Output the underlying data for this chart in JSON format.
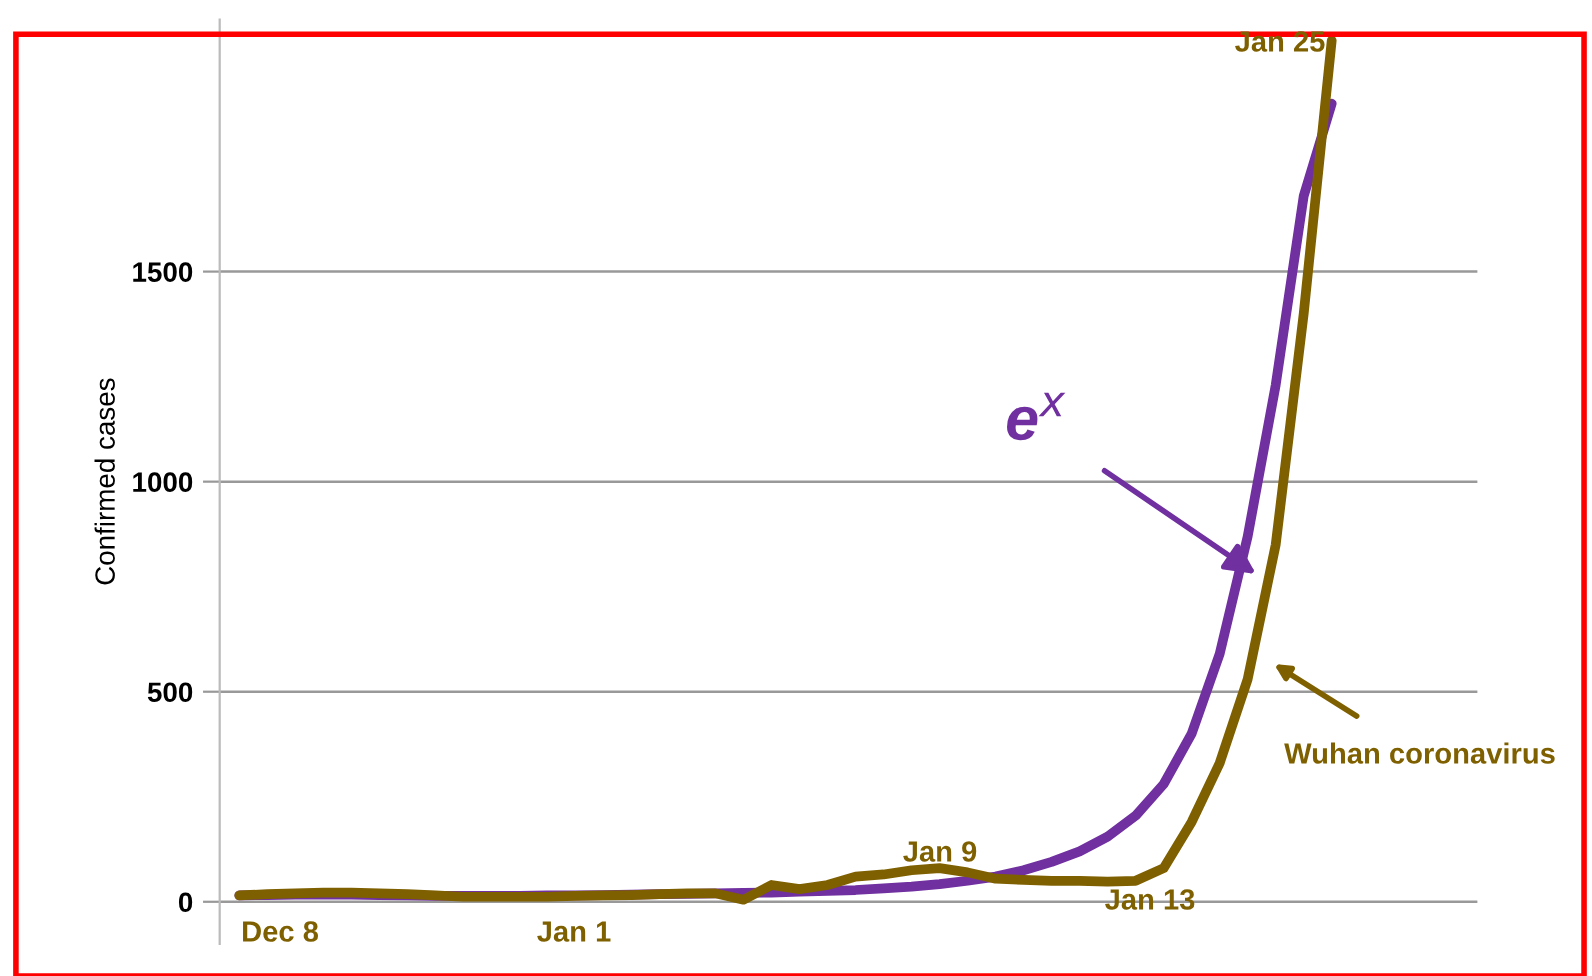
{
  "chart_data": {
    "type": "line",
    "ylabel": "Confirmed cases",
    "categories": [
      null,
      null,
      null,
      null,
      null,
      null,
      null,
      null,
      null,
      null,
      null,
      null,
      null,
      null,
      null,
      null,
      null,
      null,
      null,
      null,
      null,
      null,
      null,
      null,
      null,
      null,
      null,
      null,
      null,
      null,
      null,
      null,
      null,
      null,
      null,
      null,
      null,
      null,
      null,
      null
    ],
    "series": [
      {
        "name": "e$^{x}$",
        "color": "#7030a0",
        "values": [
          15,
          16,
          17,
          17,
          17,
          16,
          15,
          14,
          14,
          14,
          14,
          15,
          15,
          16,
          17,
          18,
          19,
          20,
          21,
          22,
          24,
          26,
          28,
          32,
          36,
          42,
          50,
          60,
          75,
          95,
          120,
          155,
          205,
          280,
          400,
          590,
          870,
          1230,
          1680,
          1900
        ]
      },
      {
        "name": "Wuhan coronavirus",
        "color": "#7f6000",
        "values": [
          15,
          18,
          20,
          22,
          22,
          20,
          18,
          15,
          12,
          12,
          12,
          12,
          14,
          15,
          16,
          18,
          20,
          20,
          5,
          40,
          30,
          40,
          60,
          65,
          75,
          80,
          70,
          55,
          52,
          50,
          50,
          48,
          50,
          80,
          190,
          330,
          530,
          850,
          1400,
          2050
        ]
      }
    ],
    "annotations": [
      "Dec 8",
      "Jan 1",
      "Jan 9",
      "Jan 13",
      "Jan 25"
    ],
    "ylim": [
      -100,
      2100
    ],
    "yticks": [
      0,
      500,
      1000,
      1500
    ],
    "grid": "y",
    "line_style": "solid",
    "marker": "none"
  }
}
